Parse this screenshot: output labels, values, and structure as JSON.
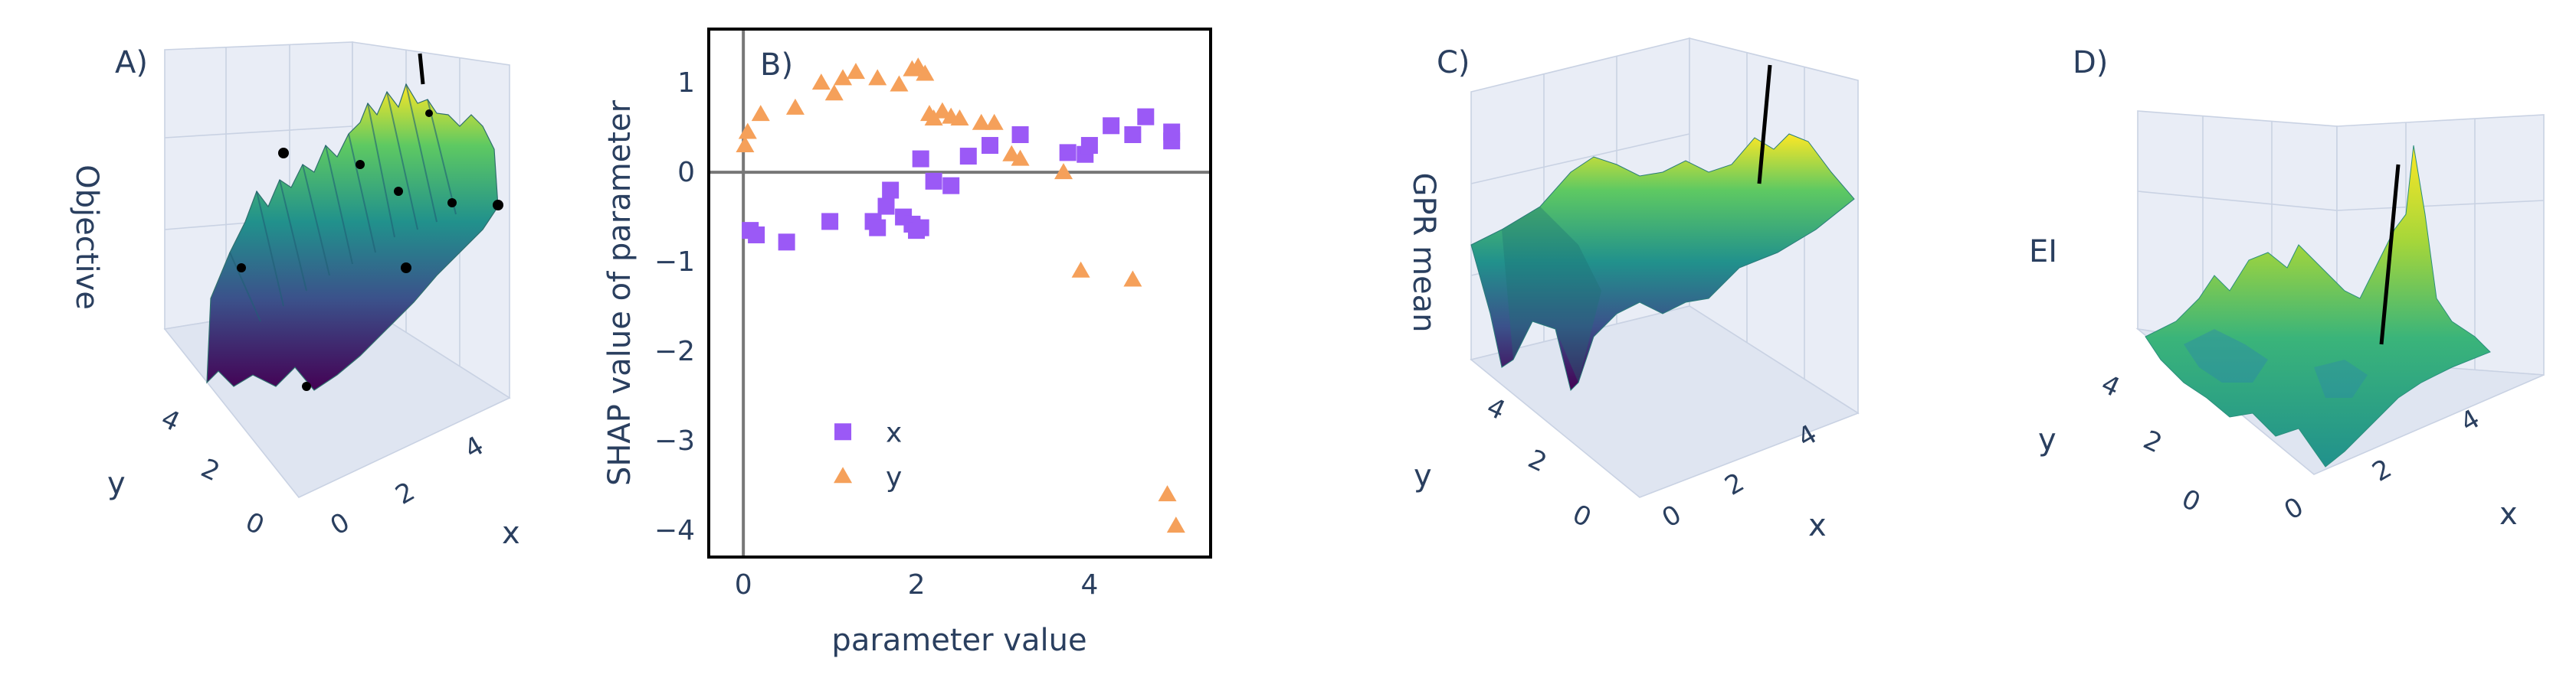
{
  "panels": [
    {
      "label": "A)",
      "type": "surface3d",
      "z_title": "Objective",
      "x_title": "x",
      "y_title": "y",
      "x_ticks": [
        "0",
        "2",
        "4"
      ],
      "y_ticks": [
        "0",
        "2",
        "4"
      ],
      "points": "yes",
      "marker": "line"
    },
    {
      "label": "C)",
      "type": "surface3d",
      "z_title": "GPR mean",
      "x_title": "x",
      "y_title": "y",
      "x_ticks": [
        "0",
        "2",
        "4"
      ],
      "y_ticks": [
        "0",
        "2",
        "4"
      ],
      "marker": "line"
    },
    {
      "label": "D)",
      "type": "surface3d",
      "z_title": "EI",
      "x_title": "x",
      "y_title": "y",
      "x_ticks": [
        "0",
        "2",
        "4"
      ],
      "y_ticks": [
        "0",
        "2",
        "4"
      ],
      "marker": "line"
    }
  ],
  "colors": {
    "x_series": "#9b59f6",
    "y_series": "#f5a05a",
    "zero_line": "#777777",
    "frame": "#000000",
    "surface_low": "#440154",
    "surface_mid": "#21918c",
    "surface_high": "#fde725"
  },
  "chart_data": {
    "label": "B)",
    "type": "scatter",
    "xlabel": "parameter value",
    "ylabel": "SHAP value of parameter",
    "xlim": [
      -0.4,
      5.4
    ],
    "ylim": [
      -4.3,
      1.6
    ],
    "x_ticks": [
      0,
      2,
      4
    ],
    "y_ticks": [
      1,
      0,
      -1,
      -2,
      -3,
      -4
    ],
    "x_tick_labels": [
      "0",
      "2",
      "4"
    ],
    "y_tick_labels": [
      "1",
      "0",
      "−1",
      "−2",
      "−3",
      "−4"
    ],
    "grid": false,
    "legend": "bottom-left",
    "series": [
      {
        "name": "x",
        "marker": "square",
        "points": [
          [
            0.08,
            -0.65
          ],
          [
            0.15,
            -0.7
          ],
          [
            0.5,
            -0.78
          ],
          [
            1.0,
            -0.55
          ],
          [
            1.5,
            -0.55
          ],
          [
            1.55,
            -0.62
          ],
          [
            1.65,
            -0.38
          ],
          [
            1.7,
            -0.2
          ],
          [
            1.85,
            -0.5
          ],
          [
            1.95,
            -0.58
          ],
          [
            2.0,
            -0.65
          ],
          [
            2.05,
            -0.62
          ],
          [
            2.05,
            0.15
          ],
          [
            2.2,
            -0.1
          ],
          [
            2.4,
            -0.15
          ],
          [
            2.6,
            0.18
          ],
          [
            2.85,
            0.3
          ],
          [
            3.2,
            0.42
          ],
          [
            3.75,
            0.22
          ],
          [
            3.95,
            0.2
          ],
          [
            4.0,
            0.3
          ],
          [
            4.25,
            0.52
          ],
          [
            4.5,
            0.42
          ],
          [
            4.65,
            0.62
          ],
          [
            4.95,
            0.35
          ],
          [
            4.95,
            0.45
          ]
        ]
      },
      {
        "name": "y",
        "marker": "triangle",
        "points": [
          [
            0.02,
            0.3
          ],
          [
            0.05,
            0.45
          ],
          [
            0.2,
            0.65
          ],
          [
            0.6,
            0.72
          ],
          [
            0.9,
            1.0
          ],
          [
            1.05,
            0.88
          ],
          [
            1.15,
            1.05
          ],
          [
            1.3,
            1.12
          ],
          [
            1.55,
            1.05
          ],
          [
            1.8,
            0.98
          ],
          [
            1.95,
            1.15
          ],
          [
            2.02,
            1.18
          ],
          [
            2.1,
            1.1
          ],
          [
            2.15,
            0.65
          ],
          [
            2.2,
            0.6
          ],
          [
            2.3,
            0.68
          ],
          [
            2.4,
            0.62
          ],
          [
            2.5,
            0.6
          ],
          [
            2.75,
            0.55
          ],
          [
            2.9,
            0.55
          ],
          [
            3.1,
            0.2
          ],
          [
            3.2,
            0.15
          ],
          [
            3.7,
            0.0
          ],
          [
            3.9,
            -1.1
          ],
          [
            4.5,
            -1.2
          ],
          [
            4.9,
            -3.6
          ],
          [
            5.0,
            -3.95
          ]
        ]
      }
    ]
  }
}
